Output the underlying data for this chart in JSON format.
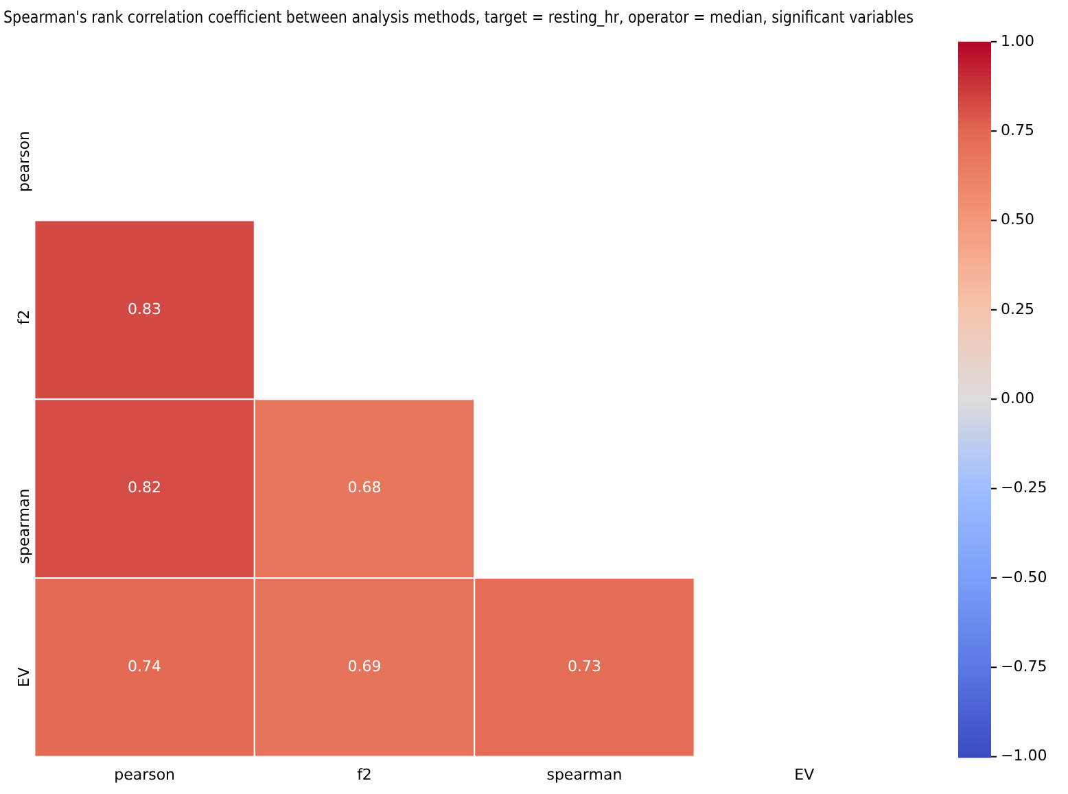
{
  "chart_data": {
    "type": "heatmap",
    "title": "Spearman's rank correlation coefficient between analysis methods, target = resting_hr, operator = median, significant variables",
    "categories": [
      "pearson",
      "f2",
      "spearman",
      "EV"
    ],
    "y_categories": [
      "pearson",
      "f2",
      "spearman",
      "EV"
    ],
    "cells": [
      [
        null,
        null,
        null,
        null
      ],
      [
        0.83,
        null,
        null,
        null
      ],
      [
        0.82,
        0.68,
        null,
        null
      ],
      [
        0.74,
        0.69,
        0.73,
        null
      ]
    ],
    "clim": [
      -1,
      1
    ],
    "cticks": [
      {
        "value": -1,
        "label": "−1.00"
      },
      {
        "value": -0.75,
        "label": "−0.75"
      },
      {
        "value": -0.5,
        "label": "−0.50"
      },
      {
        "value": -0.25,
        "label": "−0.25"
      },
      {
        "value": 0,
        "label": "0.00"
      },
      {
        "value": 0.25,
        "label": "0.25"
      },
      {
        "value": 0.5,
        "label": "0.50"
      },
      {
        "value": 0.75,
        "label": "0.75"
      },
      {
        "value": 1,
        "label": "1.00"
      }
    ],
    "data_labels": true
  }
}
